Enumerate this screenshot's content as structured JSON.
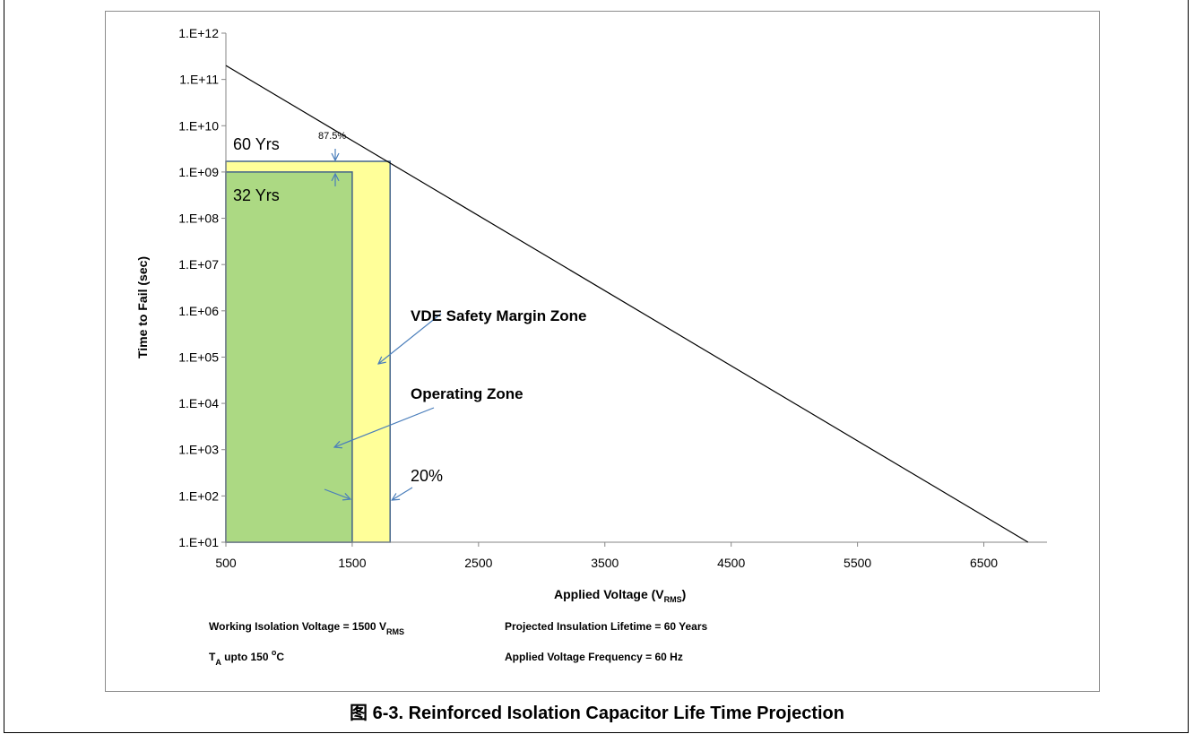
{
  "figure": {
    "caption": "图 6-3. Reinforced Isolation Capacitor Life Time Projection"
  },
  "chart_data": {
    "type": "line",
    "xlabel": {
      "text": "Applied Voltage (V",
      "sub": "RMS",
      "after": ")"
    },
    "ylabel": "Time to Fail (sec)",
    "xlim": [
      500,
      7000
    ],
    "ylim_log10": [
      1,
      12
    ],
    "y_scale": "log",
    "grid": false,
    "x_ticks": [
      500,
      1500,
      2500,
      3500,
      4500,
      5500,
      6500
    ],
    "x_tick_labels": [
      "500",
      "1500",
      "2500",
      "3500",
      "4500",
      "5500",
      "6500"
    ],
    "y_ticks_log10": [
      1,
      2,
      3,
      4,
      5,
      6,
      7,
      8,
      9,
      10,
      11,
      12
    ],
    "y_tick_labels": [
      "1.E+01",
      "1.E+02",
      "1.E+03",
      "1.E+04",
      "1.E+05",
      "1.E+06",
      "1.E+07",
      "1.E+08",
      "1.E+09",
      "1.E+10",
      "1.E+11",
      "1.E+12"
    ],
    "series": [
      {
        "line_color": "#000000",
        "x": [
          500,
          6850
        ],
        "y": [
          200000000000.0,
          10
        ]
      }
    ],
    "zones": [
      {
        "x": [
          500,
          1800
        ],
        "y_top": 1700000000.0,
        "fill": "#ffff99",
        "stroke": "#44648a"
      },
      {
        "x": [
          500,
          1500
        ],
        "y_top": 1000000000.0,
        "fill": "#acd983",
        "stroke": "#44648a"
      }
    ],
    "annotations": {
      "label_60yrs": "60 Yrs",
      "label_32yrs": "32 Yrs",
      "label_875": "87.5%",
      "label_vde": "VDE Safety Margin Zone",
      "label_operating": "Operating Zone",
      "label_20": "20%",
      "arrow_color": "#4a7ebb"
    },
    "notes": {
      "working_isolation": {
        "text": "Working Isolation Voltage = 1500 V",
        "sub": "RMS"
      },
      "ta": {
        "t": "T",
        "sub": "A",
        "mid": " upto 150 ",
        "sup": "o",
        "end": "C"
      },
      "projected_lifetime": "Projected Insulation Lifetime = 60 Years",
      "frequency": "Applied Voltage Frequency = 60 Hz"
    }
  }
}
